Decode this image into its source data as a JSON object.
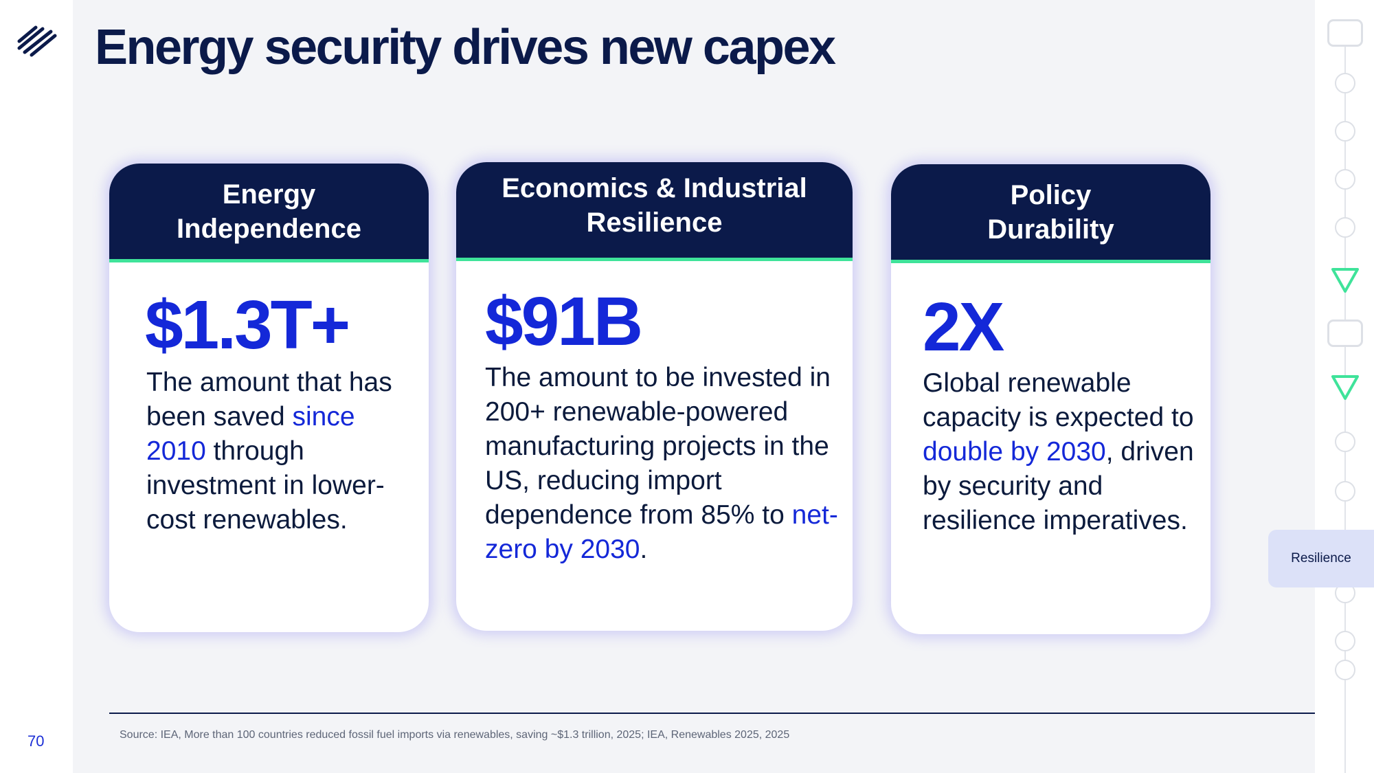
{
  "slide": {
    "title": "Energy security drives new capex",
    "page_number": "70",
    "source": "Source: IEA, More than 100 countries reduced fossil fuel imports via renewables, saving ~$1.3 trillion, 2025; IEA, Renewables 2025, 2025",
    "section_tab": "Resilience"
  },
  "cards": [
    {
      "title_lines": [
        "Energy",
        "Independence"
      ],
      "stat": "$1.3T+",
      "desc": {
        "pre": "The amount that has been saved ",
        "highlight": "since 2010",
        "post": " through investment in lower-cost renewables."
      }
    },
    {
      "title_lines": [
        "Economics & Industrial",
        "Resilience"
      ],
      "stat": "$91B",
      "desc": {
        "pre": "The amount to be invested in 200+ renewable-powered manufacturing projects in the US, reducing import dependence from 85% to ",
        "highlight": "net-zero by 2030",
        "post": "."
      }
    },
    {
      "title_lines": [
        "Policy",
        "Durability"
      ],
      "stat": "2X",
      "desc": {
        "pre": "Global renewable capacity is expected to ",
        "highlight": "double by 2030",
        "post": ", driven by security and resilience imperatives."
      }
    }
  ],
  "colors": {
    "navy": "#0b1a4a",
    "accent_blue": "#1428d8",
    "accent_green": "#3fe39a",
    "background": "#f3f4f7"
  },
  "icons": {
    "logo": "stacked-diagonal-lines-logo",
    "progress_nodes": [
      "rect",
      "circle",
      "circle",
      "circle",
      "circle",
      "triangle",
      "rect",
      "triangle",
      "circle",
      "circle",
      "circle",
      "circle",
      "circle"
    ]
  }
}
